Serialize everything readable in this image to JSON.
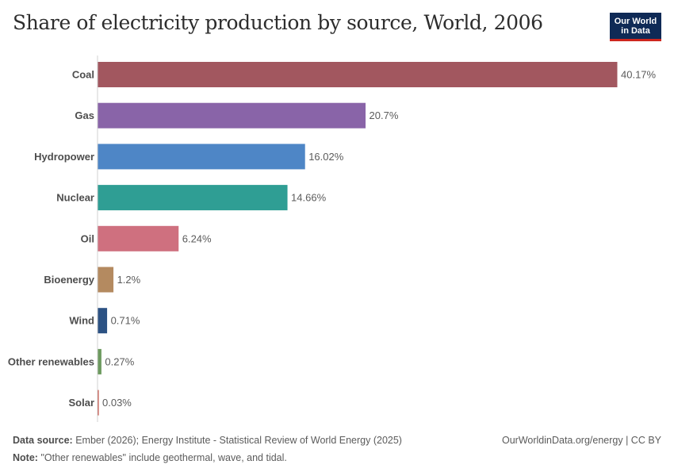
{
  "header": {
    "title": "Share of electricity production by source, World, 2006",
    "logo_line1": "Our World",
    "logo_line2": "in Data"
  },
  "footer": {
    "source_label": "Data source:",
    "source_text": "Ember (2026); Energy Institute - Statistical Review of World Energy (2025)",
    "url": "OurWorldinData.org/energy | CC BY",
    "note_label": "Note:",
    "note_text": "\"Other renewables\" include geothermal, wave, and tidal."
  },
  "chart_data": {
    "type": "bar",
    "orientation": "horizontal",
    "categories": [
      "Coal",
      "Gas",
      "Hydropower",
      "Nuclear",
      "Oil",
      "Bioenergy",
      "Wind",
      "Other renewables",
      "Solar"
    ],
    "values": [
      40.17,
      20.7,
      16.02,
      14.66,
      6.24,
      1.2,
      0.71,
      0.27,
      0.03
    ],
    "value_labels": [
      "40.17%",
      "20.7%",
      "16.02%",
      "14.66%",
      "6.24%",
      "1.2%",
      "0.71%",
      "0.27%",
      "0.03%"
    ],
    "colors": [
      "#a2575f",
      "#8964a8",
      "#4e86c6",
      "#2f9e94",
      "#cf707f",
      "#b48a60",
      "#2c5283",
      "#6d9a5f",
      "#c0392b"
    ],
    "xlim": [
      0,
      40.17
    ],
    "grid": false,
    "legend": "none"
  }
}
